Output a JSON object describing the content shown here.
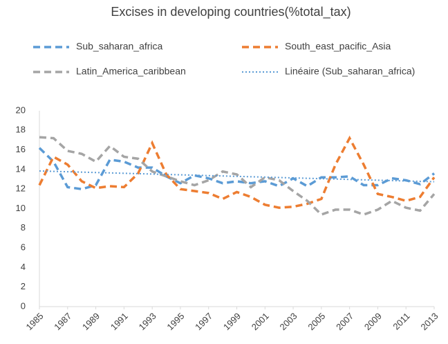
{
  "chart_data": {
    "type": "line",
    "title": "Excises in developing countries(%total_tax)",
    "x": [
      1985,
      1986,
      1987,
      1988,
      1989,
      1990,
      1991,
      1992,
      1993,
      1994,
      1995,
      1996,
      1997,
      1998,
      1999,
      2000,
      2001,
      2002,
      2003,
      2004,
      2005,
      2006,
      2007,
      2008,
      2009,
      2010,
      2011,
      2012,
      2013
    ],
    "xlim": [
      1985,
      2013
    ],
    "xticks": [
      1985,
      1987,
      1989,
      1991,
      1993,
      1995,
      1997,
      1999,
      2001,
      2003,
      2005,
      2007,
      2009,
      2011,
      2013
    ],
    "ylim": [
      0,
      20
    ],
    "yticks": [
      0,
      2,
      4,
      6,
      8,
      10,
      12,
      14,
      16,
      18,
      20
    ],
    "grid": false,
    "legend": "top",
    "series": [
      {
        "name": "Sub_saharan_africa",
        "color": "#5b9bd5",
        "style": "dashed",
        "values": [
          16.2,
          14.8,
          12.2,
          12.0,
          12.4,
          15.0,
          14.8,
          14.2,
          14.2,
          13.3,
          12.6,
          13.4,
          13.1,
          12.6,
          12.8,
          12.6,
          12.8,
          12.3,
          13.1,
          12.3,
          13.2,
          13.2,
          13.3,
          12.4,
          12.4,
          13.1,
          12.9,
          12.5,
          13.6
        ]
      },
      {
        "name": "South_east_pacific_Asia",
        "color": "#ed7d31",
        "style": "dashed",
        "values": [
          12.4,
          15.3,
          14.5,
          12.8,
          12.1,
          12.3,
          12.2,
          13.6,
          16.7,
          13.5,
          12.0,
          11.8,
          11.6,
          11.0,
          11.7,
          11.2,
          10.4,
          10.1,
          10.2,
          10.5,
          11.0,
          14.5,
          17.2,
          14.5,
          11.5,
          11.2,
          10.8,
          11.2,
          13.2
        ]
      },
      {
        "name": "Latin_America_caribbean",
        "color": "#a5a5a5",
        "style": "dashed",
        "values": [
          17.3,
          17.2,
          15.9,
          15.6,
          14.8,
          16.4,
          15.3,
          15.1,
          13.8,
          13.3,
          12.8,
          12.4,
          12.9,
          13.8,
          13.5,
          12.2,
          13.2,
          12.9,
          11.8,
          10.8,
          9.4,
          9.9,
          9.9,
          9.4,
          9.9,
          10.8,
          10.1,
          9.8,
          11.5
        ]
      },
      {
        "name": "Linéaire (Sub_saharan_africa)",
        "color": "#5b9bd5",
        "style": "dotted",
        "x": [
          1985,
          2013
        ],
        "values": [
          13.85,
          12.75
        ]
      }
    ]
  }
}
